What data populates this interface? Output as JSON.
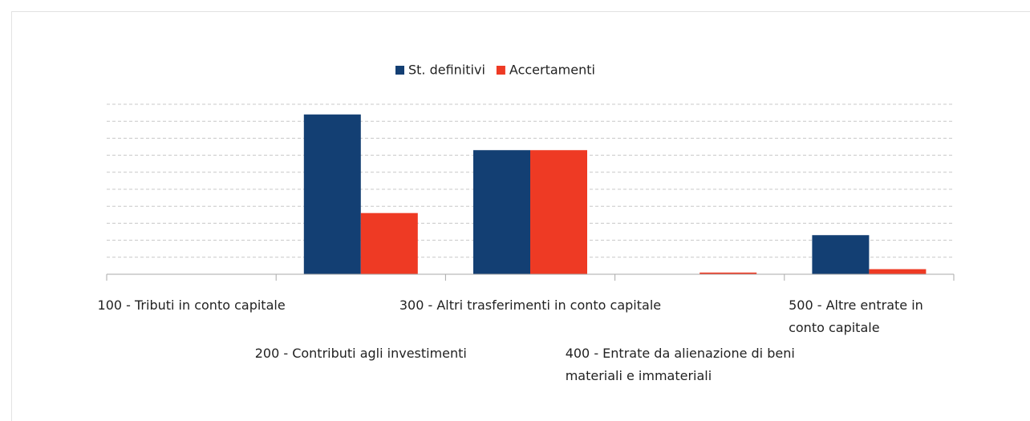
{
  "chart_data": {
    "type": "bar",
    "categories": [
      "100 - Tributi in conto capitale",
      "200 - Contributi agli investimenti",
      "300 - Altri trasferimenti in conto capitale",
      "400 - Entrate da alienazione di beni materiali e immateriali",
      "500 - Altre entrate in conto capitale"
    ],
    "series": [
      {
        "name": "St. definitivi",
        "color": "#133f73",
        "values": [
          0,
          9.4,
          7.3,
          0,
          2.3
        ]
      },
      {
        "name": "Accertamenti",
        "color": "#ee3a24",
        "values": [
          0,
          3.6,
          7.3,
          0.1,
          0.3
        ]
      }
    ],
    "ylim": [
      0,
      10
    ],
    "yticks": [
      0,
      1,
      2,
      3,
      4,
      5,
      6,
      7,
      8,
      9,
      10
    ],
    "grid": true,
    "legend": "top"
  }
}
